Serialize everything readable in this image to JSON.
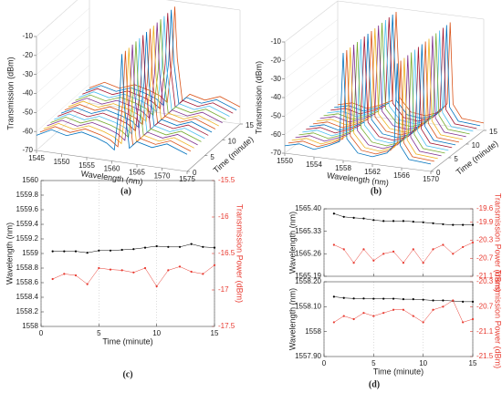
{
  "chart_data": [
    {
      "type": "waterfall",
      "panel_label": "(a)",
      "xlabel": "Wavelength (nm)",
      "ylabel": "Time (minute)",
      "zlabel": "Transmission (dBm)",
      "x": [
        1545,
        1548,
        1551,
        1554,
        1557,
        1559,
        1560.5,
        1561.5,
        1562,
        1562.5,
        1563.5,
        1565,
        1568,
        1571,
        1575
      ],
      "values": [
        -62,
        -58,
        -60,
        -57,
        -59,
        -61,
        -64,
        -40,
        -13,
        -40,
        -62,
        -58,
        -60,
        -57,
        -61
      ],
      "times": [
        0,
        1,
        2,
        3,
        4,
        5,
        6,
        7,
        8,
        9,
        10,
        11,
        12,
        13,
        14,
        15
      ],
      "xlim": [
        1545,
        1575
      ],
      "xticks": [
        1545,
        1550,
        1555,
        1560,
        1565,
        1570,
        1575
      ],
      "ylim": [
        0,
        15
      ],
      "yticks": [
        0,
        5,
        10,
        15
      ],
      "zlim": [
        -70,
        -10
      ],
      "zticks": [
        -70,
        -60,
        -50,
        -40,
        -30,
        -20,
        -10
      ],
      "colors": [
        "#0072bd",
        "#d95319",
        "#edb120",
        "#7e2f8e",
        "#77ac30",
        "#4dbeee",
        "#a2142f"
      ]
    },
    {
      "type": "waterfall",
      "panel_label": "(b)",
      "xlabel": "Wavelength (nm)",
      "ylabel": "Time (minute)",
      "zlabel": "Transmission (dBm)",
      "x": [
        1550,
        1552,
        1554,
        1556,
        1557.5,
        1558,
        1558.5,
        1560,
        1562,
        1564,
        1565,
        1565.4,
        1565.8,
        1567,
        1570
      ],
      "values": [
        -66,
        -64,
        -66,
        -63,
        -60,
        -12,
        -58,
        -65,
        -66,
        -63,
        -58,
        -14,
        -58,
        -65,
        -66
      ],
      "times": [
        0,
        1,
        2,
        3,
        4,
        5,
        6,
        7,
        8,
        9,
        10,
        11,
        12,
        13,
        14,
        15
      ],
      "xlim": [
        1550,
        1570
      ],
      "xticks": [
        1550,
        1554,
        1558,
        1562,
        1566,
        1570
      ],
      "ylim": [
        0,
        15
      ],
      "yticks": [
        0,
        5,
        10,
        15
      ],
      "zlim": [
        -70,
        -10
      ],
      "zticks": [
        -70,
        -60,
        -50,
        -40,
        -30,
        -20,
        -10
      ],
      "colors": [
        "#0072bd",
        "#d95319",
        "#edb120",
        "#7e2f8e",
        "#77ac30",
        "#4dbeee",
        "#a2142f"
      ]
    },
    {
      "type": "line",
      "panel_label": "(c)",
      "xlabel": "Time (minute)",
      "ylabel": "Wavelength (nm)",
      "y2label": "Transmission Power (dBm)",
      "x": [
        1,
        2,
        3,
        4,
        5,
        6,
        7,
        8,
        9,
        10,
        11,
        12,
        13,
        14,
        15
      ],
      "series": [
        {
          "color": "#000000",
          "values": [
            1559.03,
            1559.03,
            1559.03,
            1559.01,
            1559.04,
            1559.04,
            1559.05,
            1559.06,
            1559.08,
            1559.1,
            1559.09,
            1559.09,
            1559.13,
            1559.09,
            1559.08
          ]
        },
        {
          "color": "#e8392f",
          "axis": "y2",
          "values": [
            -16.85,
            -16.78,
            -16.8,
            -16.92,
            -16.7,
            -16.72,
            -16.73,
            -16.76,
            -16.7,
            -16.95,
            -16.73,
            -16.68,
            -16.75,
            -16.78,
            -16.66
          ]
        }
      ],
      "xlim": [
        0,
        15
      ],
      "xticks": [
        0,
        5,
        10,
        15
      ],
      "ylim": [
        1558,
        1560
      ],
      "yticks": [
        1558,
        1558.2,
        1558.4,
        1558.6,
        1558.8,
        1559,
        1559.2,
        1559.4,
        1559.6,
        1559.8,
        1560
      ],
      "y2lim": [
        -17.5,
        -15.5
      ],
      "y2ticks": [
        -17.5,
        -17,
        -16.5,
        -16,
        -15.5
      ]
    },
    {
      "type": "line",
      "ylabel": "Wavelength (nm)",
      "y2label": "Transmission Power (dBm)",
      "show_xtick_labels": false,
      "x": [
        1,
        2,
        3,
        4,
        5,
        6,
        7,
        8,
        9,
        10,
        11,
        12,
        13,
        14,
        15
      ],
      "series": [
        {
          "color": "#000000",
          "values": [
            1565.385,
            1565.375,
            1565.372,
            1565.37,
            1565.365,
            1565.362,
            1565.362,
            1565.362,
            1565.36,
            1565.358,
            1565.355,
            1565.352,
            1565.35,
            1565.35,
            1565.35
          ]
        },
        {
          "color": "#e8392f",
          "axis": "y2",
          "values": [
            -20.4,
            -20.5,
            -20.8,
            -20.5,
            -20.75,
            -20.6,
            -20.55,
            -20.8,
            -20.5,
            -20.8,
            -20.5,
            -20.4,
            -20.6,
            -20.45,
            -20.35
          ]
        }
      ],
      "xlim": [
        0,
        15
      ],
      "xticks": [
        0,
        5,
        10,
        15
      ],
      "ylim": [
        1565.19,
        1565.4
      ],
      "yticks": [
        1565.19,
        1565.26,
        1565.33,
        {
          "value": 1565.4,
          "label": "1565.40"
        }
      ],
      "y2lim": [
        -21.1,
        -19.6
      ],
      "y2ticks": [
        -21.1,
        -20.7,
        -20.3,
        -19.9,
        -19.6
      ]
    },
    {
      "type": "line",
      "panel_label": "(d)",
      "xlabel": "Time (minute)",
      "ylabel": "Wavelength (nm)",
      "y2label": "Transmission Power (dBm)",
      "x": [
        1,
        2,
        3,
        4,
        5,
        6,
        7,
        8,
        9,
        10,
        11,
        12,
        13,
        14,
        15
      ],
      "series": [
        {
          "color": "#000000",
          "values": [
            1558.14,
            1558.135,
            1558.133,
            1558.133,
            1558.132,
            1558.132,
            1558.132,
            1558.13,
            1558.13,
            1558.128,
            1558.125,
            1558.125,
            1558.123,
            1558.12,
            1558.12
          ]
        },
        {
          "color": "#e8392f",
          "axis": "y2",
          "values": [
            -20.95,
            -20.85,
            -20.9,
            -20.8,
            -20.85,
            -20.8,
            -20.75,
            -20.75,
            -20.85,
            -20.95,
            -20.75,
            -20.7,
            -20.6,
            -20.95,
            -20.9
          ]
        }
      ],
      "xlim": [
        0,
        15
      ],
      "xticks": [
        0,
        5,
        10,
        15
      ],
      "ylim": [
        1557.9,
        1558.2
      ],
      "yticks": [
        {
          "value": 1557.9,
          "label": "1557.90"
        },
        1558,
        {
          "value": 1558.1,
          "label": "1558.10"
        },
        {
          "value": 1558.2,
          "label": "1558.20"
        }
      ],
      "y2lim": [
        -21.5,
        -20.3
      ],
      "y2ticks": [
        -21.5,
        -21.1,
        -20.7,
        -20.3
      ]
    }
  ]
}
